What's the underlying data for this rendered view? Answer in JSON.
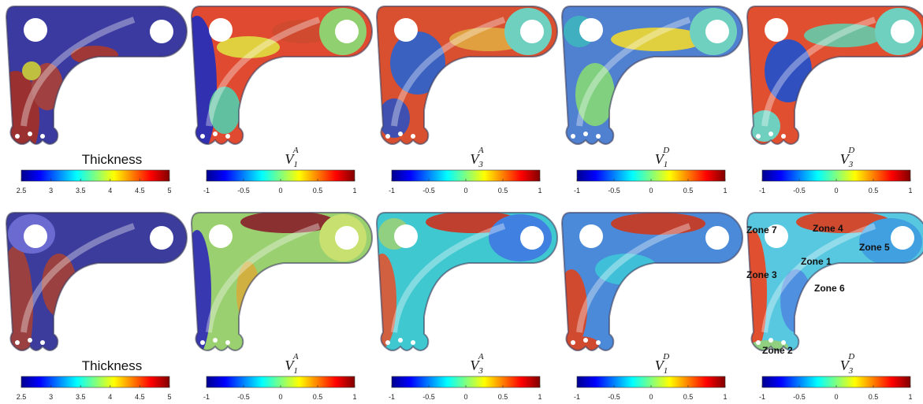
{
  "panels": [
    {
      "label": {
        "text": "Thickness"
      },
      "ticks": [
        2.5,
        3,
        3.5,
        4,
        4.5,
        5
      ]
    },
    {
      "label": {
        "base": "V",
        "sub": "1",
        "sup": "A"
      },
      "ticks": [
        -1,
        -0.5,
        0,
        0.5,
        1
      ]
    },
    {
      "label": {
        "base": "V",
        "sub": "3",
        "sup": "A"
      },
      "ticks": [
        -1,
        -0.5,
        0,
        0.5,
        1
      ]
    },
    {
      "label": {
        "base": "V",
        "sub": "1",
        "sup": "D"
      },
      "ticks": [
        -1,
        -0.5,
        0,
        0.5,
        1
      ]
    },
    {
      "label": {
        "base": "V",
        "sub": "3",
        "sup": "D"
      },
      "ticks": [
        -1,
        -0.5,
        0,
        0.5,
        1
      ]
    },
    {
      "label": {
        "text": "Thickness"
      },
      "ticks": [
        2.5,
        3,
        3.5,
        4,
        4.5,
        5
      ]
    },
    {
      "label": {
        "base": "V",
        "sub": "1",
        "sup": "A"
      },
      "ticks": [
        -1,
        -0.5,
        0,
        0.5,
        1
      ]
    },
    {
      "label": {
        "base": "V",
        "sub": "3",
        "sup": "A"
      },
      "ticks": [
        -1,
        -0.5,
        0,
        0.5,
        1
      ]
    },
    {
      "label": {
        "base": "V",
        "sub": "1",
        "sup": "D"
      },
      "ticks": [
        -1,
        -0.5,
        0,
        0.5,
        1
      ]
    },
    {
      "label": {
        "base": "V",
        "sub": "3",
        "sup": "D"
      },
      "ticks": [
        -1,
        -0.5,
        0,
        0.5,
        1
      ]
    }
  ],
  "zones": [
    "Zone 7",
    "Zone 4",
    "Zone 5",
    "Zone 1",
    "Zone 3",
    "Zone 6",
    "Zone 2"
  ]
}
